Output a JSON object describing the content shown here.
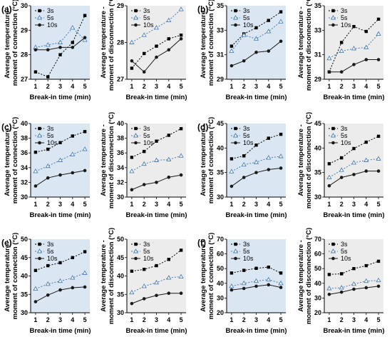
{
  "figure": {
    "xlabel": "Break-in time (min)",
    "ylabel_connection": [
      "Average temperature -",
      "moment of connection (°C)"
    ],
    "ylabel_disconnection": [
      "Average temperature -",
      "moment of disconnection (°C)"
    ],
    "legend": [
      "3s",
      "5s",
      "10s"
    ],
    "colors": {
      "connection_bg": "#dbe6f3",
      "disconnection_bg": "#ececec",
      "series_3s": "#000000",
      "series_5s": "#4a7fb5",
      "series_10s": "#1a1a1a"
    }
  },
  "chart_data": [
    {
      "panel": "(a)",
      "chart": "connection",
      "type": "line",
      "x": [
        1,
        2,
        3,
        4,
        5
      ],
      "ylim": [
        27,
        30
      ],
      "yticks": [
        27,
        28,
        29,
        30
      ],
      "series": [
        {
          "name": "3s",
          "values": [
            27.3,
            27.1,
            28.0,
            28.5,
            29.6
          ]
        },
        {
          "name": "5s",
          "values": [
            28.3,
            28.4,
            28.5,
            29.1,
            28.6
          ]
        },
        {
          "name": "10s",
          "values": [
            28.2,
            28.2,
            28.3,
            28.3,
            28.7
          ]
        }
      ]
    },
    {
      "panel": "(a)",
      "chart": "disconnection",
      "type": "line",
      "x": [
        1,
        2,
        3,
        4,
        5
      ],
      "ylim": [
        27,
        29
      ],
      "yticks": [
        27,
        28,
        29
      ],
      "series": [
        {
          "name": "3s",
          "values": [
            27.3,
            27.7,
            27.9,
            28.1,
            28.2
          ]
        },
        {
          "name": "5s",
          "values": [
            28.0,
            28.2,
            28.4,
            28.6,
            28.9
          ]
        },
        {
          "name": "10s",
          "values": [
            27.5,
            27.2,
            27.6,
            27.8,
            28.1
          ]
        }
      ]
    },
    {
      "panel": "(b)",
      "chart": "connection",
      "type": "line",
      "x": [
        1,
        2,
        3,
        4,
        5
      ],
      "ylim": [
        29,
        35
      ],
      "yticks": [
        29,
        31,
        33,
        35
      ],
      "series": [
        {
          "name": "3s",
          "values": [
            31.7,
            32.7,
            33.2,
            33.8,
            34.5
          ]
        },
        {
          "name": "5s",
          "values": [
            31.3,
            32.6,
            32.3,
            32.9,
            33.7
          ]
        },
        {
          "name": "10s",
          "values": [
            30.1,
            30.5,
            31.2,
            31.3,
            32.1
          ]
        }
      ]
    },
    {
      "panel": "(b)",
      "chart": "disconnection",
      "type": "line",
      "x": [
        1,
        2,
        3,
        4,
        5
      ],
      "ylim": [
        29,
        35
      ],
      "yticks": [
        29,
        31,
        33,
        35
      ],
      "series": [
        {
          "name": "3s",
          "values": [
            29.6,
            32.0,
            33.3,
            32.9,
            33.9
          ]
        },
        {
          "name": "5s",
          "values": [
            30.7,
            31.3,
            31.5,
            31.6,
            32.7
          ]
        },
        {
          "name": "10s",
          "values": [
            29.6,
            29.6,
            30.2,
            30.6,
            30.6
          ]
        }
      ]
    },
    {
      "panel": "(c)",
      "chart": "connection",
      "type": "line",
      "x": [
        1,
        2,
        3,
        4,
        5
      ],
      "ylim": [
        30,
        40
      ],
      "yticks": [
        30,
        32,
        34,
        36,
        38,
        40
      ],
      "series": [
        {
          "name": "3s",
          "values": [
            36.1,
            36.5,
            37.4,
            38.3,
            38.9
          ]
        },
        {
          "name": "5s",
          "values": [
            33.5,
            34.2,
            35.0,
            35.8,
            36.5
          ]
        },
        {
          "name": "10s",
          "values": [
            31.5,
            32.6,
            33.0,
            33.3,
            33.6
          ]
        }
      ]
    },
    {
      "panel": "(c)",
      "chart": "disconnection",
      "type": "line",
      "x": [
        1,
        2,
        3,
        4,
        5
      ],
      "ylim": [
        30,
        40
      ],
      "yticks": [
        30,
        32,
        34,
        36,
        38,
        40
      ],
      "series": [
        {
          "name": "3s",
          "values": [
            35.4,
            36.2,
            37.6,
            38.4,
            39.3
          ]
        },
        {
          "name": "5s",
          "values": [
            33.5,
            34.5,
            35.0,
            35.1,
            35.6
          ]
        },
        {
          "name": "10s",
          "values": [
            31.0,
            31.7,
            32.0,
            32.7,
            33.0
          ]
        }
      ]
    },
    {
      "panel": "(d)",
      "chart": "connection",
      "type": "line",
      "x": [
        1,
        2,
        3,
        4,
        5
      ],
      "ylim": [
        30,
        45
      ],
      "yticks": [
        30,
        35,
        40,
        45
      ],
      "series": [
        {
          "name": "3s",
          "values": [
            37.8,
            38.4,
            40.6,
            42.0,
            42.8
          ]
        },
        {
          "name": "5s",
          "values": [
            35.2,
            36.6,
            37.1,
            38.0,
            38.3
          ]
        },
        {
          "name": "10s",
          "values": [
            32.2,
            34.0,
            35.0,
            35.6,
            35.9
          ]
        }
      ]
    },
    {
      "panel": "(d)",
      "chart": "disconnection",
      "type": "line",
      "x": [
        1,
        2,
        3,
        4,
        5
      ],
      "ylim": [
        30,
        45
      ],
      "yticks": [
        30,
        35,
        40,
        45
      ],
      "series": [
        {
          "name": "3s",
          "values": [
            36.8,
            38.0,
            39.9,
            41.2,
            42.4
          ]
        },
        {
          "name": "5s",
          "values": [
            34.0,
            35.5,
            37.0,
            37.5,
            37.8
          ]
        },
        {
          "name": "10s",
          "values": [
            32.3,
            34.0,
            34.6,
            35.3,
            35.3
          ]
        }
      ]
    },
    {
      "panel": "(e)",
      "chart": "connection",
      "type": "line",
      "x": [
        1,
        2,
        3,
        4,
        5
      ],
      "ylim": [
        30,
        50
      ],
      "yticks": [
        30,
        35,
        40,
        45,
        50
      ],
      "series": [
        {
          "name": "3s",
          "values": [
            41.5,
            42.8,
            43.6,
            45.0,
            46.6
          ]
        },
        {
          "name": "5s",
          "values": [
            36.5,
            37.8,
            38.6,
            39.5,
            40.8
          ]
        },
        {
          "name": "10s",
          "values": [
            33.0,
            34.8,
            36.2,
            36.8,
            37.0
          ]
        }
      ]
    },
    {
      "panel": "(e)",
      "chart": "disconnection",
      "type": "line",
      "x": [
        1,
        2,
        3,
        4,
        5
      ],
      "ylim": [
        30,
        50
      ],
      "yticks": [
        30,
        35,
        40,
        45,
        50
      ],
      "series": [
        {
          "name": "3s",
          "values": [
            41.3,
            41.8,
            42.8,
            44.5,
            47.0
          ]
        },
        {
          "name": "5s",
          "values": [
            35.5,
            37.2,
            38.2,
            39.5,
            39.8
          ]
        },
        {
          "name": "10s",
          "values": [
            32.5,
            33.8,
            34.7,
            35.3,
            35.3
          ]
        }
      ]
    },
    {
      "panel": "(f)",
      "chart": "connection",
      "type": "line",
      "x": [
        1,
        2,
        3,
        4,
        5
      ],
      "ylim": [
        20,
        70
      ],
      "yticks": [
        20,
        30,
        40,
        50,
        60,
        70
      ],
      "series": [
        {
          "name": "3s",
          "values": [
            47.0,
            48.8,
            50.2,
            51.0,
            47.0
          ]
        },
        {
          "name": "5s",
          "values": [
            38.0,
            40.0,
            41.5,
            42.5,
            40.0
          ]
        },
        {
          "name": "10s",
          "values": [
            35.5,
            36.5,
            38.0,
            39.0,
            37.2
          ]
        }
      ]
    },
    {
      "panel": "(f)",
      "chart": "disconnection",
      "type": "line",
      "x": [
        1,
        2,
        3,
        4,
        5
      ],
      "ylim": [
        20,
        70
      ],
      "yticks": [
        20,
        30,
        40,
        50,
        60,
        70
      ],
      "series": [
        {
          "name": "3s",
          "values": [
            46.0,
            46.5,
            50.0,
            52.0,
            55.0
          ]
        },
        {
          "name": "5s",
          "values": [
            36.5,
            37.0,
            39.5,
            41.5,
            42.0
          ]
        },
        {
          "name": "10s",
          "values": [
            32.5,
            34.0,
            36.0,
            37.0,
            38.0
          ]
        }
      ]
    }
  ]
}
